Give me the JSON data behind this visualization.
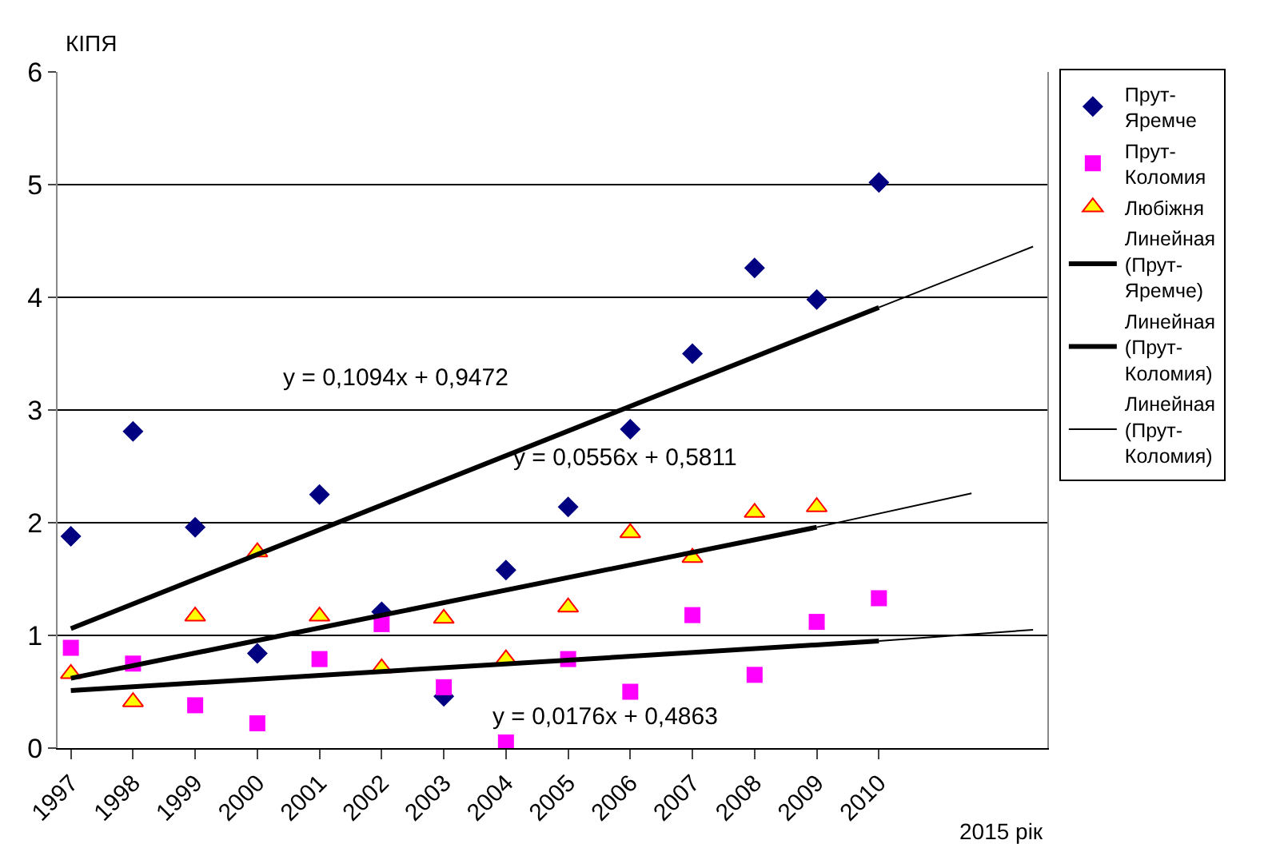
{
  "chart_data": {
    "type": "scatter",
    "ylabel": "КІПЯ",
    "xlabel": "2015 рік",
    "xlim": [
      1996.786,
      2012.71
    ],
    "xticks": [
      1997,
      1998,
      1999,
      2000,
      2001,
      2002,
      2003,
      2004,
      2005,
      2006,
      2007,
      2008,
      2009,
      2010
    ],
    "ylim": [
      0,
      6
    ],
    "yticks": [
      0,
      1,
      2,
      3,
      4,
      5,
      6
    ],
    "grid": "y",
    "legend": "right",
    "x": [
      1997,
      1998,
      1999,
      2000,
      2001,
      2002,
      2003,
      2004,
      2005,
      2006,
      2007,
      2008,
      2009,
      2010
    ],
    "series": [
      {
        "name": "Прут-Яремче",
        "color": "#000080",
        "marker": "diamond",
        "values": [
          1.88,
          2.81,
          1.96,
          0.84,
          2.25,
          1.21,
          0.46,
          1.58,
          2.14,
          2.83,
          3.5,
          4.26,
          3.98,
          5.02
        ]
      },
      {
        "name": "Прут-Коломия",
        "color": "#ff00ff",
        "marker": "square",
        "values": [
          0.89,
          0.75,
          0.38,
          0.22,
          0.79,
          1.1,
          0.54,
          0.05,
          0.79,
          0.5,
          1.18,
          0.65,
          1.12,
          1.33
        ]
      },
      {
        "name": "Любіжня",
        "color": "#ffff00",
        "marker": "triangle",
        "values": [
          0.66,
          0.41,
          1.17,
          1.74,
          1.17,
          0.71,
          1.15,
          0.79,
          1.25,
          1.91,
          1.69,
          2.09,
          2.14,
          null
        ]
      },
      {
        "name": "Линейная (Прут-Яремче)",
        "type": "line",
        "color": "#000000",
        "x": [
          1997,
          2010
        ],
        "values": [
          1.06,
          3.91
        ]
      },
      {
        "name": "Линейная (Прут-Коломия)",
        "type": "line",
        "color": "#000000",
        "x": [
          1997,
          2009
        ],
        "values": [
          0.62,
          1.96
        ]
      },
      {
        "type": "line",
        "color": "#000000",
        "x": [
          1997,
          2010
        ],
        "values": [
          0.51,
          0.95
        ]
      },
      {
        "type": "line",
        "color": "#000000",
        "x": [
          2010,
          2012.48
        ],
        "values": [
          3.91,
          4.45
        ]
      },
      {
        "type": "line",
        "color": "#000000",
        "x": [
          2009,
          2011.49
        ],
        "values": [
          1.96,
          2.26
        ]
      },
      {
        "name": "Линейная (Прут-Коломия)",
        "type": "line",
        "color": "#000000",
        "x": [
          2010,
          2012.48
        ],
        "values": [
          0.95,
          1.05
        ]
      }
    ],
    "annotations": [
      "y = 0,1094x + 0,9472",
      "y = 0,0556x + 0,5811",
      "y = 0,0176x + 0,4863"
    ]
  }
}
